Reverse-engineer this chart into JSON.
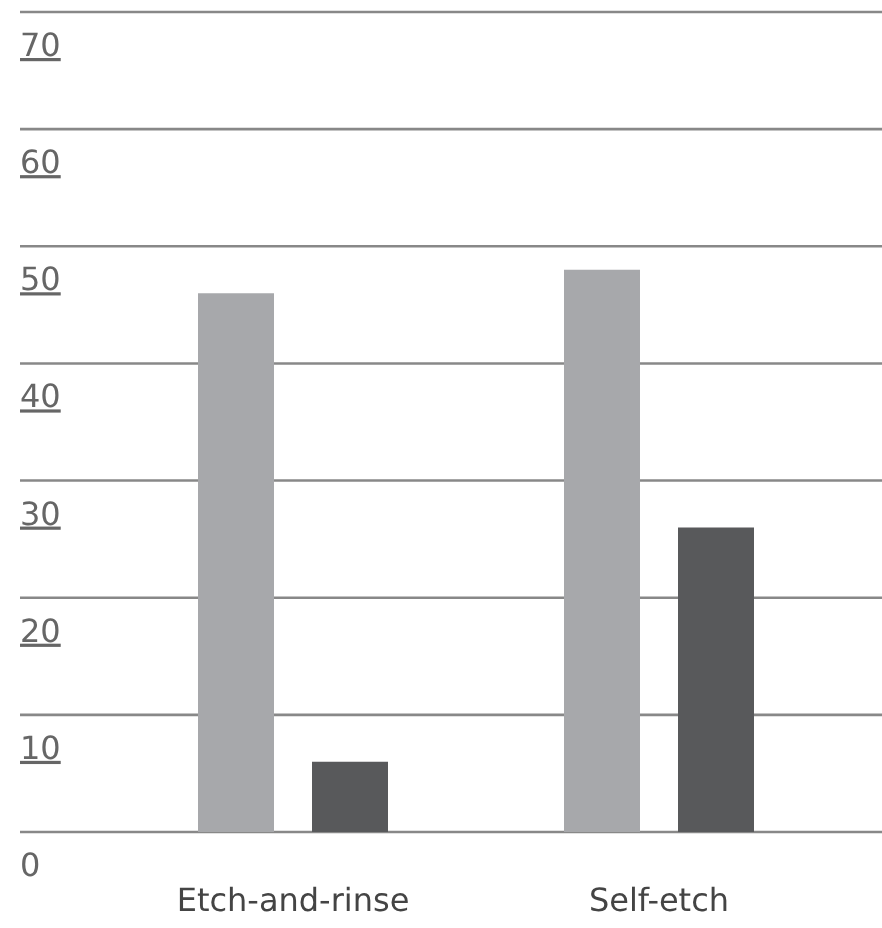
{
  "chart_data": {
    "type": "bar",
    "categories": [
      "Etch-and-rinse",
      "Self-etch"
    ],
    "series": [
      {
        "color": "#a7a8ab",
        "values": [
          46,
          48
        ]
      },
      {
        "color": "#58595b",
        "values": [
          6,
          26
        ]
      }
    ],
    "ylim": [
      0,
      70
    ],
    "yticks": [
      0,
      10,
      20,
      30,
      40,
      50,
      60,
      70
    ],
    "grid": "y"
  }
}
